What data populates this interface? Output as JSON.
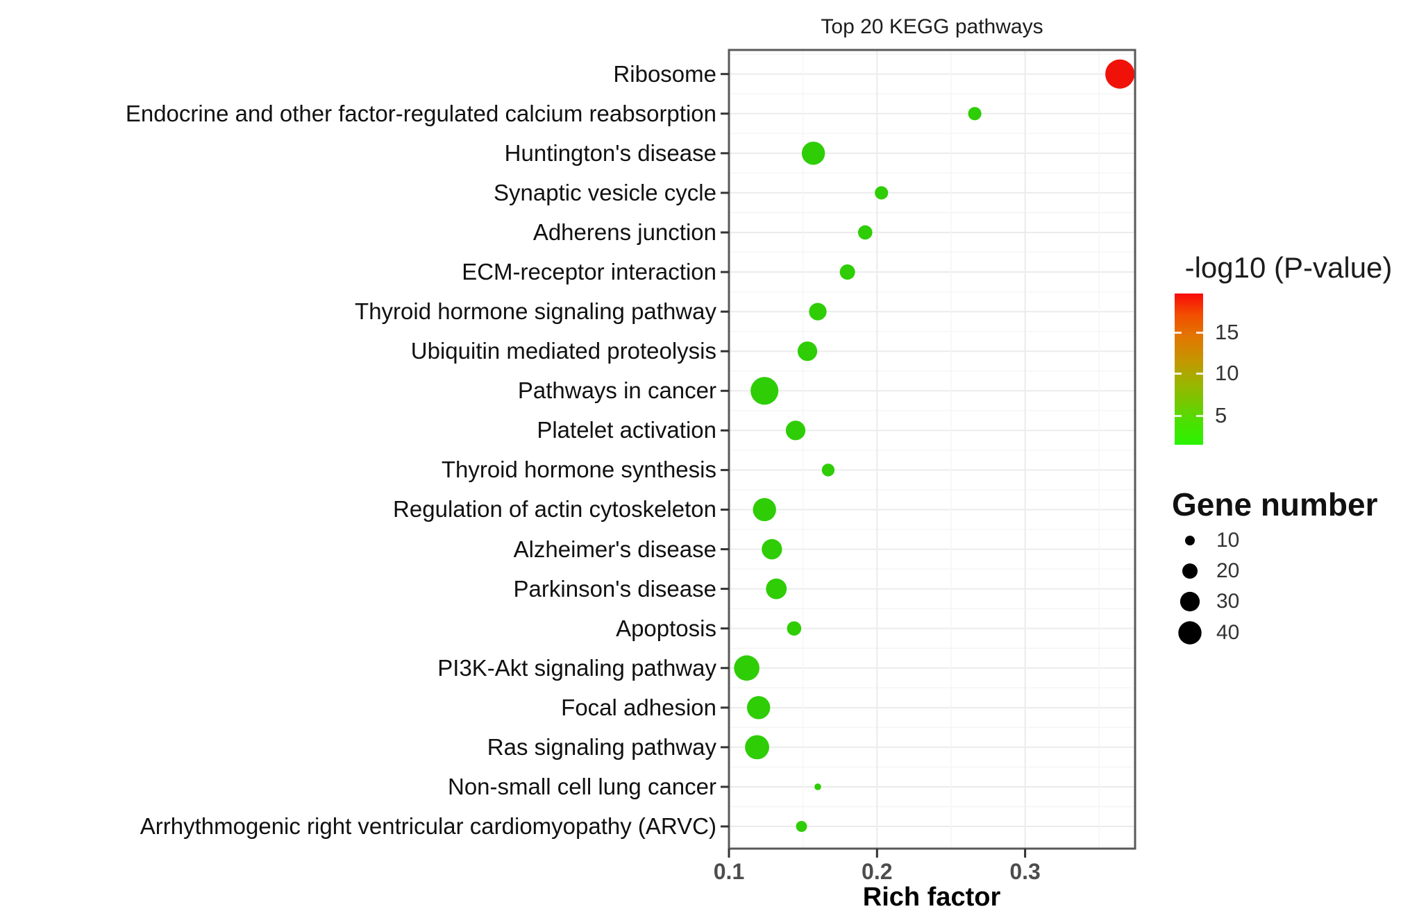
{
  "chart_data": {
    "type": "scatter",
    "title": "Top 20 KEGG pathways",
    "xlabel": "Rich factor",
    "x_ticks": [
      0.1,
      0.2,
      0.3
    ],
    "x_tick_labels": [
      "0.1",
      "0.2",
      "0.3"
    ],
    "x_minor_ticks": [
      0.15,
      0.25,
      0.35
    ],
    "x_range": [
      0.1,
      0.374
    ],
    "grid": true,
    "color_scale": {
      "label": "-log10 (P-value)",
      "ticks": [
        15,
        10,
        5
      ],
      "min": 1.5,
      "max": 19.7,
      "low_color": "#2bf303",
      "high_color": "#fa0a0a"
    },
    "size_scale": {
      "label": "Gene number",
      "breaks": [
        10,
        20,
        30,
        40
      ]
    },
    "points": [
      {
        "pathway": "Ribosome",
        "rich_factor": 0.364,
        "gene_number": 60,
        "neg_log10_p": 19.0,
        "color": "#f01209"
      },
      {
        "pathway": "Endocrine and other factor-regulated calcium reabsorption",
        "rich_factor": 0.266,
        "gene_number": 16,
        "neg_log10_p": 4.0,
        "color": "#2ecd06"
      },
      {
        "pathway": "Huntington's disease",
        "rich_factor": 0.157,
        "gene_number": 40,
        "neg_log10_p": 3.5,
        "color": "#2ecd06"
      },
      {
        "pathway": "Synaptic vesicle cycle",
        "rich_factor": 0.203,
        "gene_number": 16,
        "neg_log10_p": 3.5,
        "color": "#2ecd06"
      },
      {
        "pathway": "Adherens junction",
        "rich_factor": 0.192,
        "gene_number": 18,
        "neg_log10_p": 3.5,
        "color": "#2ecd06"
      },
      {
        "pathway": "ECM-receptor interaction",
        "rich_factor": 0.18,
        "gene_number": 20,
        "neg_log10_p": 3.5,
        "color": "#2ecd06"
      },
      {
        "pathway": "Thyroid hormone signaling pathway",
        "rich_factor": 0.16,
        "gene_number": 25,
        "neg_log10_p": 3.0,
        "color": "#2ecd06"
      },
      {
        "pathway": "Ubiquitin mediated proteolysis",
        "rich_factor": 0.153,
        "gene_number": 30,
        "neg_log10_p": 3.0,
        "color": "#2ecd06"
      },
      {
        "pathway": "Pathways in cancer",
        "rich_factor": 0.124,
        "gene_number": 55,
        "neg_log10_p": 3.0,
        "color": "#2ecd06"
      },
      {
        "pathway": "Platelet activation",
        "rich_factor": 0.145,
        "gene_number": 30,
        "neg_log10_p": 3.0,
        "color": "#2ecd06"
      },
      {
        "pathway": "Thyroid hormone synthesis",
        "rich_factor": 0.167,
        "gene_number": 15,
        "neg_log10_p": 3.0,
        "color": "#2ecd06"
      },
      {
        "pathway": "Regulation of actin cytoskeleton",
        "rich_factor": 0.124,
        "gene_number": 40,
        "neg_log10_p": 3.0,
        "color": "#2ecd06"
      },
      {
        "pathway": "Alzheimer's disease",
        "rich_factor": 0.129,
        "gene_number": 32,
        "neg_log10_p": 3.0,
        "color": "#2ecd06"
      },
      {
        "pathway": "Parkinson's disease",
        "rich_factor": 0.132,
        "gene_number": 33,
        "neg_log10_p": 3.0,
        "color": "#2ecd06"
      },
      {
        "pathway": "Apoptosis",
        "rich_factor": 0.144,
        "gene_number": 18,
        "neg_log10_p": 3.0,
        "color": "#2ecd06"
      },
      {
        "pathway": "PI3K-Akt signaling pathway",
        "rich_factor": 0.112,
        "gene_number": 47,
        "neg_log10_p": 2.5,
        "color": "#2ecd06"
      },
      {
        "pathway": "Focal adhesion",
        "rich_factor": 0.12,
        "gene_number": 40,
        "neg_log10_p": 2.5,
        "color": "#2ecd06"
      },
      {
        "pathway": "Ras signaling pathway",
        "rich_factor": 0.119,
        "gene_number": 43,
        "neg_log10_p": 2.5,
        "color": "#2ecd06"
      },
      {
        "pathway": "Non-small cell lung cancer",
        "rich_factor": 0.16,
        "gene_number": 6,
        "neg_log10_p": 3.0,
        "color": "#2ecd06"
      },
      {
        "pathway": "Arrhythmogenic right ventricular cardiomyopathy (ARVC)",
        "rich_factor": 0.149,
        "gene_number": 12,
        "neg_log10_p": 3.0,
        "color": "#2ecd06"
      }
    ]
  },
  "legend_pvalue": {
    "title": "-log10 (P-value)",
    "tick_labels": [
      "15",
      "10",
      "5"
    ]
  },
  "legend_gene_number": {
    "title": "Gene number",
    "labels": [
      "10",
      "20",
      "30",
      "40"
    ],
    "sizes": [
      10,
      20,
      30,
      40
    ]
  },
  "colors": {
    "dot_green": "#2ecd06",
    "dot_red": "#f01209",
    "panel_border": "#595959",
    "grid_major": "#ebebeb",
    "grid_minor": "#f5f5f5",
    "tick_mark": "#333333",
    "axis_tick_text": "#4d4d4d",
    "legend_dot": "#000000"
  }
}
